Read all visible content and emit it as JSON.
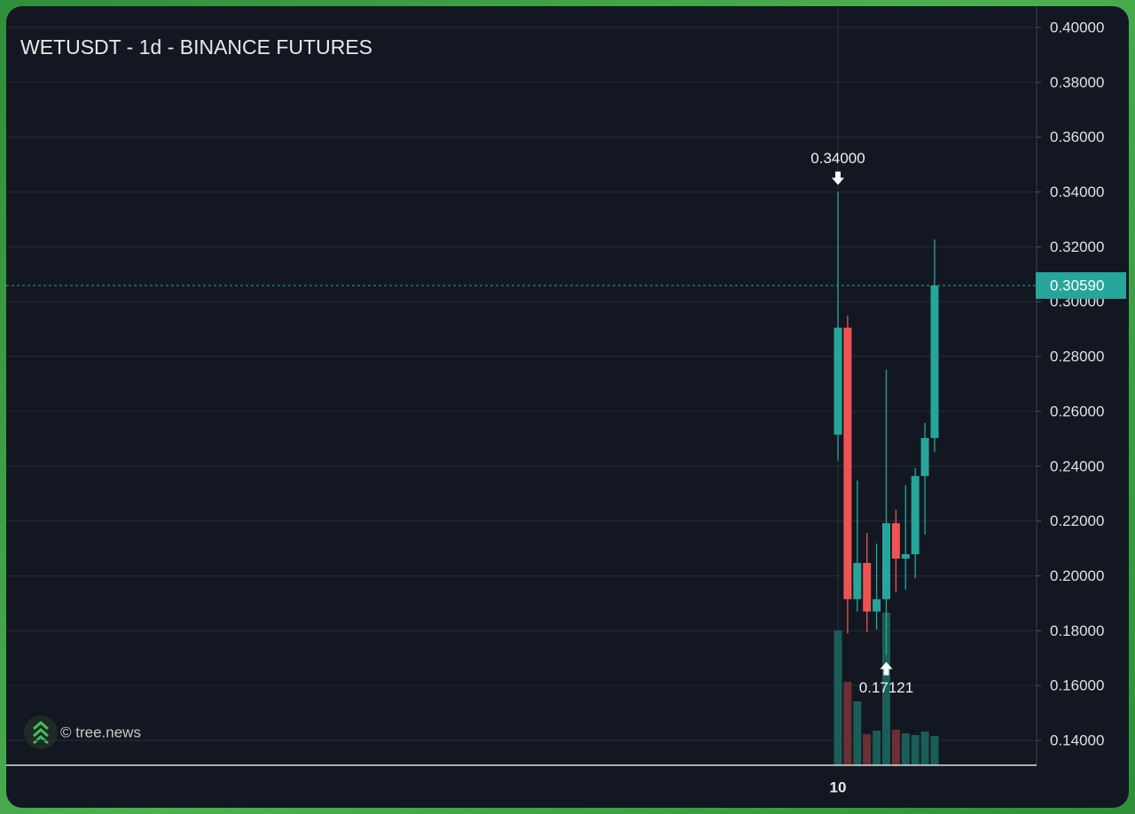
{
  "chart_data": {
    "type": "candlestick",
    "title": "WETUSDT - 1d - BINANCE FUTURES",
    "watermark": "© tree.news",
    "categories": [
      "10",
      null,
      null,
      null,
      null,
      null,
      null,
      null,
      null,
      null,
      null
    ],
    "open": [
      0.2515,
      0.2905,
      0.1915,
      0.2047,
      0.187,
      0.1915,
      0.2192,
      0.2063,
      0.2079,
      0.2364,
      0.2503
    ],
    "high": [
      0.34,
      0.295,
      0.2348,
      0.2157,
      0.2118,
      0.2752,
      0.2241,
      0.2331,
      0.2393,
      0.2558,
      0.3227
    ],
    "low": [
      0.242,
      0.179,
      0.187,
      0.1795,
      0.1804,
      0.17121,
      0.194,
      0.195,
      0.1992,
      0.215,
      0.2451
    ],
    "close": [
      0.2905,
      0.1915,
      0.2047,
      0.187,
      0.1915,
      0.2192,
      0.2063,
      0.2079,
      0.2364,
      0.2503,
      0.3059
    ],
    "volume": [
      152,
      94,
      72,
      35,
      39,
      172,
      40,
      36,
      34,
      38,
      33
    ],
    "up_color": "#26a69a",
    "down_color": "#ef5350",
    "volume_up_color": "#1b5d57",
    "volume_down_color": "#6b3034",
    "ylim": [
      0.13,
      0.4
    ],
    "yticks": [
      {
        "value": 0.14,
        "label": "0.14000"
      },
      {
        "value": 0.16,
        "label": "0.16000"
      },
      {
        "value": 0.18,
        "label": "0.18000"
      },
      {
        "value": 0.2,
        "label": "0.20000"
      },
      {
        "value": 0.22,
        "label": "0.22000"
      },
      {
        "value": 0.24,
        "label": "0.24000"
      },
      {
        "value": 0.26,
        "label": "0.26000"
      },
      {
        "value": 0.28,
        "label": "0.28000"
      },
      {
        "value": 0.3,
        "label": "0.30000"
      },
      {
        "value": 0.32,
        "label": "0.32000"
      },
      {
        "value": 0.34,
        "label": "0.34000"
      },
      {
        "value": 0.36,
        "label": "0.36000"
      },
      {
        "value": 0.38,
        "label": "0.38000"
      },
      {
        "value": 0.4,
        "label": "0.40000"
      }
    ],
    "grid": true,
    "high_annotation": {
      "value": 0.34,
      "label": "0.34000"
    },
    "low_annotation": {
      "value": 0.17121,
      "label": "0.17121"
    },
    "last_price": {
      "value": 0.3059,
      "label": "0.30590"
    }
  }
}
